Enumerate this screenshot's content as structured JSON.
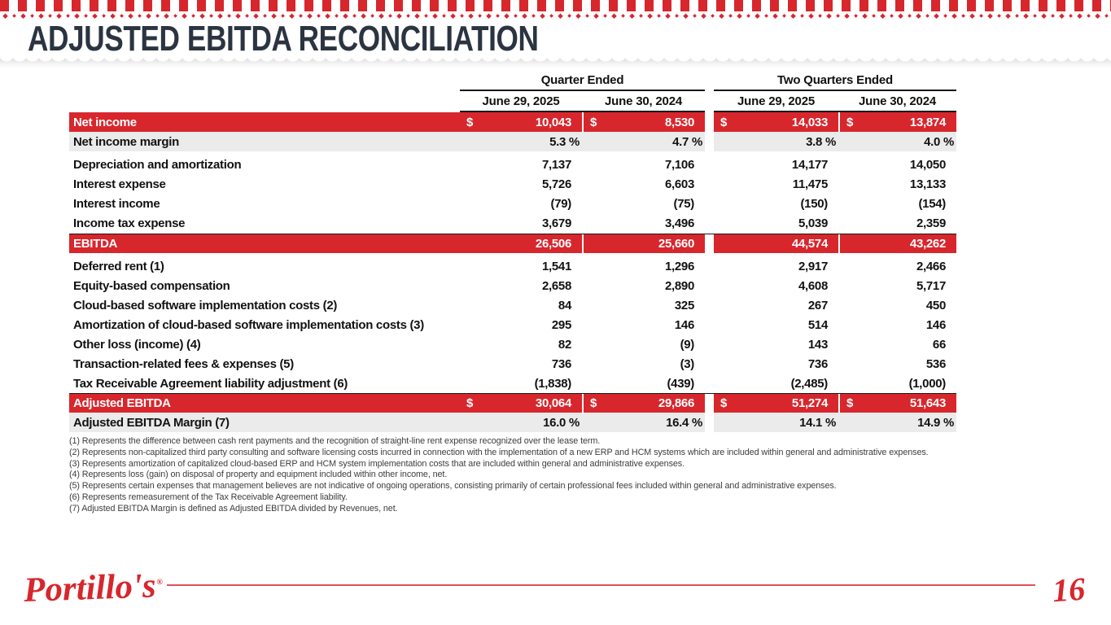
{
  "title": "ADJUSTED EBITDA RECONCILIATION",
  "colors": {
    "brand_red": "#d8262d",
    "title_dark": "#2b3440",
    "row_gray": "#ebebeb",
    "text_black": "#121212"
  },
  "table": {
    "dollar_sign": "$",
    "col_groups": [
      {
        "label": "Quarter Ended",
        "cols": [
          "June 29, 2025",
          "June 30, 2024"
        ]
      },
      {
        "label": "Two Quarters Ended",
        "cols": [
          "June 29, 2025",
          "June 30, 2024"
        ]
      }
    ],
    "rows": [
      {
        "label": "Net income",
        "style": "red",
        "dollar": true,
        "values": [
          "10,043",
          "8,530",
          "14,033",
          "13,874"
        ]
      },
      {
        "label": "Net income margin",
        "style": "gray",
        "values": [
          "5.3 %",
          "4.7 %",
          "3.8 %",
          "4.0 %"
        ]
      },
      {
        "spacer": true
      },
      {
        "label": "Depreciation and amortization",
        "values": [
          "7,137",
          "7,106",
          "14,177",
          "14,050"
        ]
      },
      {
        "label": "Interest expense",
        "values": [
          "5,726",
          "6,603",
          "11,475",
          "13,133"
        ]
      },
      {
        "label": "Interest income",
        "values": [
          "(79)",
          "(75)",
          "(150)",
          "(154)"
        ]
      },
      {
        "label": "Income tax expense",
        "values": [
          "3,679",
          "3,496",
          "5,039",
          "2,359"
        ]
      },
      {
        "label": "EBITDA",
        "style": "red",
        "topline": true,
        "values": [
          "26,506",
          "25,660",
          "44,574",
          "43,262"
        ]
      },
      {
        "spacer": true
      },
      {
        "label": "Deferred rent (1)",
        "values": [
          "1,541",
          "1,296",
          "2,917",
          "2,466"
        ]
      },
      {
        "label": "Equity-based compensation",
        "values": [
          "2,658",
          "2,890",
          "4,608",
          "5,717"
        ]
      },
      {
        "label": "Cloud-based software implementation costs (2)",
        "values": [
          "84",
          "325",
          "267",
          "450"
        ]
      },
      {
        "label": "Amortization of cloud-based software implementation costs (3)",
        "values": [
          "295",
          "146",
          "514",
          "146"
        ]
      },
      {
        "label": "Other loss (income) (4)",
        "values": [
          "82",
          "(9)",
          "143",
          "66"
        ]
      },
      {
        "label": "Transaction-related fees & expenses (5)",
        "values": [
          "736",
          "(3)",
          "736",
          "536"
        ]
      },
      {
        "label": "Tax Receivable Agreement liability adjustment (6)",
        "values": [
          "(1,838)",
          "(439)",
          "(2,485)",
          "(1,000)"
        ]
      },
      {
        "label": "Adjusted EBITDA",
        "style": "red",
        "topline": true,
        "dollar": true,
        "values": [
          "30,064",
          "29,866",
          "51,274",
          "51,643"
        ]
      },
      {
        "label": "Adjusted EBITDA Margin (7)",
        "style": "gray",
        "values": [
          "16.0 %",
          "16.4 %",
          "14.1 %",
          "14.9 %"
        ]
      }
    ]
  },
  "footnotes": [
    "(1) Represents the difference between cash rent payments and the recognition of straight-line rent expense recognized over the lease term.",
    "(2) Represents non-capitalized third party consulting and software licensing costs incurred in connection with the implementation of a new ERP and HCM systems which are included within general and administrative expenses.",
    "(3) Represents amortization of capitalized cloud-based ERP and HCM system implementation costs that are included within general and administrative expenses.",
    "(4) Represents loss (gain) on disposal of property and equipment included within other income, net.",
    "(5) Represents certain expenses that management believes are not indicative of ongoing operations, consisting primarily of certain professional fees included within general and administrative expenses.",
    "(6) Represents remeasurement of the Tax Receivable Agreement liability.",
    "(7) Adjusted EBITDA Margin is defined as Adjusted EBITDA divided by Revenues, net."
  ],
  "footer": {
    "logo_text": "Portillo's",
    "reg_mark": "®",
    "page_number": "16"
  }
}
